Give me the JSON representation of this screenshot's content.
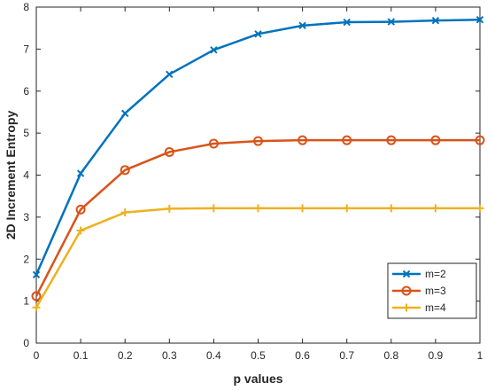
{
  "chart_data": {
    "type": "line",
    "title": "",
    "xlabel": "p values",
    "ylabel": "2D Increment Entropy",
    "xlim": [
      0,
      1
    ],
    "ylim": [
      0,
      8
    ],
    "x_ticks": [
      "0",
      "0.1",
      "0.2",
      "0.3",
      "0.4",
      "0.5",
      "0.6",
      "0.7",
      "0.8",
      "0.9",
      "1"
    ],
    "y_ticks": [
      "0",
      "1",
      "2",
      "3",
      "4",
      "5",
      "6",
      "7",
      "8"
    ],
    "x": [
      0,
      0.1,
      0.2,
      0.3,
      0.4,
      0.5,
      0.6,
      0.7,
      0.8,
      0.9,
      1.0
    ],
    "grid": false,
    "legend_position": "bottom-right",
    "series": [
      {
        "name": "m=2",
        "color": "#0072BD",
        "marker": "x",
        "values": [
          1.63,
          4.04,
          5.47,
          6.4,
          6.98,
          7.36,
          7.56,
          7.64,
          7.65,
          7.68,
          7.7
        ]
      },
      {
        "name": "m=3",
        "color": "#D95319",
        "marker": "circle",
        "values": [
          1.12,
          3.18,
          4.12,
          4.55,
          4.75,
          4.81,
          4.83,
          4.83,
          4.83,
          4.83,
          4.83
        ]
      },
      {
        "name": "m=4",
        "color": "#EDB120",
        "marker": "plus",
        "values": [
          0.85,
          2.68,
          3.11,
          3.2,
          3.21,
          3.21,
          3.21,
          3.21,
          3.21,
          3.21,
          3.21
        ]
      }
    ]
  }
}
